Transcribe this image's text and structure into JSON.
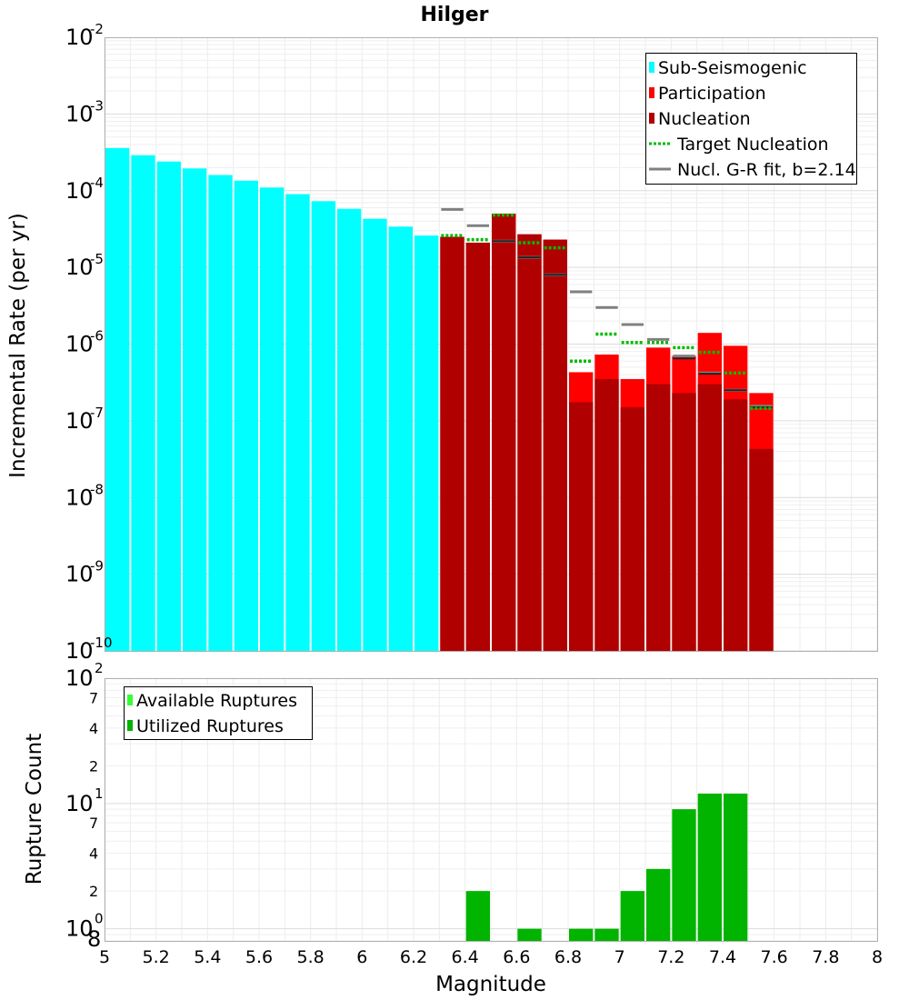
{
  "chart_data": [
    {
      "type": "bar",
      "title": "Hilger",
      "xlabel": "",
      "ylabel": "Incremental Rate (per yr)",
      "xlim": [
        5,
        8
      ],
      "ylim": [
        1e-10,
        0.01
      ],
      "yscale": "log",
      "grid": true,
      "legend_position": "top-right",
      "y_ticks": [
        {
          "base": "10",
          "exp": "-10"
        },
        {
          "base": "10",
          "exp": "-9"
        },
        {
          "base": "10",
          "exp": "-8"
        },
        {
          "base": "10",
          "exp": "-7"
        },
        {
          "base": "10",
          "exp": "-6"
        },
        {
          "base": "10",
          "exp": "-5"
        },
        {
          "base": "10",
          "exp": "-4"
        },
        {
          "base": "10",
          "exp": "-3"
        },
        {
          "base": "10",
          "exp": "-2"
        }
      ],
      "legend": [
        {
          "label": "Sub-Seismogenic",
          "color": "#00ffff",
          "kind": "bar"
        },
        {
          "label": "Participation",
          "color": "#ff0000",
          "kind": "bar"
        },
        {
          "label": "Nucleation",
          "color": "#b00000",
          "kind": "bar"
        },
        {
          "label": "Target Nucleation",
          "color": "#00bb00",
          "kind": "dotted-line"
        },
        {
          "label": "Nucl. G-R fit, b=2.14",
          "color": "#808080",
          "kind": "line"
        }
      ],
      "series": [
        {
          "name": "Sub-Seismogenic",
          "color": "#00ffff",
          "x": [
            5.05,
            5.15,
            5.25,
            5.35,
            5.45,
            5.55,
            5.65,
            5.75,
            5.85,
            5.95,
            6.05,
            6.15,
            6.25
          ],
          "values": [
            0.00036,
            0.00029,
            0.00024,
            0.000195,
            0.00016,
            0.000135,
            0.00011,
            9e-05,
            7.3e-05,
            5.8e-05,
            4.3e-05,
            3.4e-05,
            2.6e-05
          ]
        },
        {
          "name": "Participation",
          "color": "#ff0000",
          "x": [
            6.35,
            6.45,
            6.55,
            6.65,
            6.75,
            6.85,
            6.95,
            7.05,
            7.15,
            7.25,
            7.35,
            7.45,
            7.55
          ],
          "values": [
            2.5e-05,
            2.1e-05,
            5e-05,
            2.7e-05,
            2.3e-05,
            4.3e-07,
            7.3e-07,
            3.5e-07,
            9e-07,
            7e-07,
            1.4e-06,
            9.5e-07,
            2.3e-07
          ]
        },
        {
          "name": "Nucleation",
          "color": "#b00000",
          "x": [
            6.35,
            6.45,
            6.55,
            6.65,
            6.75,
            6.85,
            6.95,
            7.05,
            7.15,
            7.25,
            7.35,
            7.45,
            7.55
          ],
          "values": [
            2.5e-05,
            2.1e-05,
            5e-05,
            2.7e-05,
            2.3e-05,
            1.75e-07,
            3.5e-07,
            1.5e-07,
            3e-07,
            2.3e-07,
            3e-07,
            1.9e-07,
            4.3e-08
          ]
        },
        {
          "name": "Target Nucleation",
          "color": "#00bb00",
          "x": [
            6.35,
            6.45,
            6.55,
            6.65,
            6.75,
            6.85,
            6.95,
            7.05,
            7.15,
            7.25,
            7.35,
            7.45,
            7.55
          ],
          "values": [
            2.6e-05,
            2.3e-05,
            4.8e-05,
            2.1e-05,
            1.8e-05,
            6e-07,
            1.35e-06,
            1.05e-06,
            1.05e-06,
            9e-07,
            7.8e-07,
            4.2e-07,
            1.45e-07
          ]
        },
        {
          "name": "Nucl. G-R fit, b=2.14",
          "color": "#808080",
          "x": [
            6.35,
            6.45,
            6.55,
            6.65,
            6.75,
            6.85,
            6.95,
            7.05,
            7.15,
            7.25,
            7.35,
            7.45,
            7.55
          ],
          "values": [
            5.7e-05,
            3.5e-05,
            2.2e-05,
            1.35e-05,
            8e-06,
            4.8e-06,
            3e-06,
            1.8e-06,
            1.15e-06,
            7e-07,
            4.2e-07,
            2.5e-07,
            1.55e-07
          ]
        }
      ]
    },
    {
      "type": "bar",
      "title": "",
      "xlabel": "Magnitude",
      "ylabel": "Rupture Count",
      "xlim": [
        5,
        8
      ],
      "ylim": [
        0.8,
        100
      ],
      "yscale": "log",
      "grid": true,
      "legend_position": "top-left",
      "x_ticks": [
        "5",
        "5.2",
        "5.4",
        "5.6",
        "5.8",
        "6",
        "6.2",
        "6.4",
        "6.6",
        "6.8",
        "7",
        "7.2",
        "7.4",
        "7.6",
        "7.8",
        "8"
      ],
      "y_major_ticks": [
        {
          "base": "10",
          "exp": "0"
        },
        {
          "base": "10",
          "exp": "1"
        },
        {
          "base": "10",
          "exp": "2"
        }
      ],
      "y_minor_ticks": [
        {
          "value": 0.8,
          "label": "8"
        },
        {
          "value": 2,
          "label": "2"
        },
        {
          "value": 4,
          "label": "4"
        },
        {
          "value": 7,
          "label": "7"
        },
        {
          "value": 20,
          "label": "2"
        },
        {
          "value": 40,
          "label": "4"
        },
        {
          "value": 70,
          "label": "7"
        }
      ],
      "legend": [
        {
          "label": "Available Ruptures",
          "color": "#33ff33",
          "kind": "bar"
        },
        {
          "label": "Utilized Ruptures",
          "color": "#00b400",
          "kind": "bar"
        }
      ],
      "series": [
        {
          "name": "Utilized Ruptures",
          "color": "#00b400",
          "x": [
            6.45,
            6.65,
            6.85,
            6.95,
            7.05,
            7.15,
            7.25,
            7.35,
            7.45
          ],
          "values": [
            2,
            1,
            1,
            1,
            2,
            3,
            9,
            12,
            12
          ]
        }
      ]
    }
  ]
}
